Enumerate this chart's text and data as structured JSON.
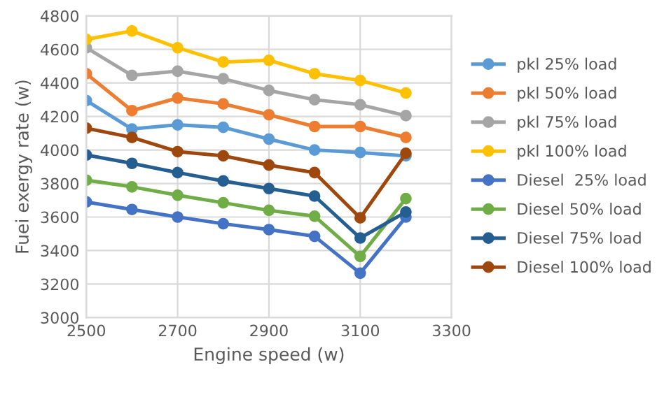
{
  "chart_data": {
    "type": "line",
    "xlabel": "Engine speed (w)",
    "ylabel": "Fuei exergy rate (w)",
    "x": [
      2500,
      2600,
      2700,
      2800,
      2900,
      3000,
      3100,
      3200
    ],
    "xlim": [
      2500,
      3300
    ],
    "xticks": [
      2500,
      2700,
      2900,
      3100,
      3300
    ],
    "ylim": [
      3000,
      4800
    ],
    "yticks": [
      3000,
      3200,
      3400,
      3600,
      3800,
      4000,
      4200,
      4400,
      4600,
      4800
    ],
    "grid": true,
    "legend": "right",
    "marker": "circle",
    "line_style": "solid",
    "series": [
      {
        "name": "pkl 25% load",
        "color": "#5b9bd5",
        "values": [
          4295,
          4125,
          4150,
          4135,
          4065,
          4000,
          3985,
          3965
        ]
      },
      {
        "name": "pkl 50% load",
        "color": "#ed7d31",
        "values": [
          4455,
          4235,
          4310,
          4275,
          4210,
          4140,
          4140,
          4075
        ]
      },
      {
        "name": "pkl 75% load",
        "color": "#a5a5a5",
        "values": [
          4610,
          4445,
          4470,
          4425,
          4355,
          4300,
          4270,
          4205
        ]
      },
      {
        "name": "pkl 100% load",
        "color": "#ffc000",
        "values": [
          4660,
          4710,
          4610,
          4525,
          4535,
          4455,
          4415,
          4340
        ]
      },
      {
        "name": "Diesel  25% load",
        "color": "#4472c4",
        "values": [
          3690,
          3645,
          3600,
          3560,
          3525,
          3485,
          3265,
          3600
        ]
      },
      {
        "name": "Diesel 50% load",
        "color": "#70ad47",
        "values": [
          3820,
          3780,
          3730,
          3685,
          3640,
          3605,
          3365,
          3710
        ]
      },
      {
        "name": "Diesel 75% load",
        "color": "#255e91",
        "values": [
          3970,
          3920,
          3865,
          3815,
          3770,
          3725,
          3475,
          3630
        ]
      },
      {
        "name": "Diesel 100% load",
        "color": "#9e480e",
        "values": [
          4130,
          4075,
          3990,
          3965,
          3910,
          3865,
          3595,
          3980
        ]
      }
    ]
  }
}
